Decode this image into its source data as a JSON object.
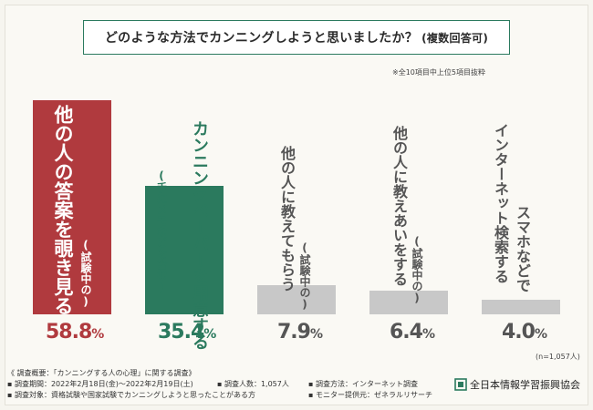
{
  "title": {
    "main": "どのような方法でカンニングしようと思いましたか？",
    "sub": "(複数回答可)"
  },
  "note": "※全10項目中上位5項目抜粋",
  "sample_note": "(n=1,057人)",
  "colors": {
    "bar_top": "#b03a3e",
    "bar_second": "#2b7a5e",
    "bar_rest": "#c8c8c8",
    "title_border": "#2b7a5e"
  },
  "chart_data": {
    "type": "bar",
    "categories": [
      "他の人の答案を覗き見る(試験中の)",
      "カンニングペーパーを用意する(手にメモなどを含む)",
      "他の人に教えてもらう(試験中の)",
      "他の人に教えあいをする(試験中の)",
      "インターネット検索するスマホなどで"
    ],
    "values": [
      58.8,
      35.4,
      7.9,
      6.4,
      4.0
    ],
    "value_labels": [
      {
        "num": "58.8",
        "unit": "%"
      },
      {
        "num": "35.4",
        "unit": "%"
      },
      {
        "num": "7.9",
        "unit": "%"
      },
      {
        "num": "6.4",
        "unit": "%"
      },
      {
        "num": "4.0",
        "unit": "%"
      }
    ],
    "labels_main": [
      "他の人の答案を覗き見る",
      "カンニングペーパーを用意する",
      "他の人に教えてもらう",
      "他の人に教えあいをする",
      "インターネット検索する"
    ],
    "labels_paren": [
      "(試験中の)",
      "(手にメモなどを含む)",
      "(試験中の)",
      "(試験中の)",
      "スマホなどで"
    ],
    "ylim": [
      0,
      60
    ]
  },
  "footer": {
    "heading": "《 調査概要：「カンニングする人の心理」に関する調査》",
    "period": "▪ 調査期間：2022年2月18日(金)～2022年2月19日(土)",
    "respondents": "▪ 調査人数：1,057人",
    "method": "▪ 調査方法：インターネット調査",
    "target": "▪ 調査対象：資格試験や国家試験でカンニングしようと思ったことがある方",
    "provider": "▪ モニター提供元：ゼネラルリサーチ"
  },
  "logo": {
    "name": "全日本情報学習振興協会",
    "icon": "organization-logo-icon"
  }
}
